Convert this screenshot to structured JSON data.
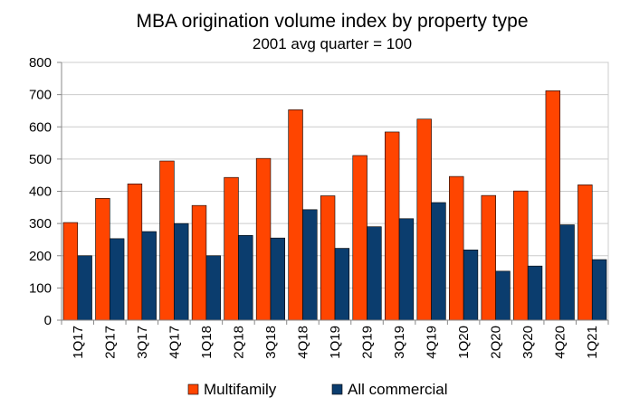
{
  "chart_data": {
    "type": "bar",
    "title": "MBA origination volume index by property type",
    "subtitle": "2001 avg quarter = 100",
    "xlabel": "",
    "ylabel": "",
    "ylim": [
      0,
      800
    ],
    "yticks": [
      0,
      100,
      200,
      300,
      400,
      500,
      600,
      700,
      800
    ],
    "grid": true,
    "legend_position": "bottom",
    "categories": [
      "1Q17",
      "2Q17",
      "3Q17",
      "4Q17",
      "1Q18",
      "2Q18",
      "3Q18",
      "4Q18",
      "1Q19",
      "2Q19",
      "3Q19",
      "4Q19",
      "1Q20",
      "2Q20",
      "3Q20",
      "4Q20",
      "1Q21"
    ],
    "series": [
      {
        "name": "Multifamily",
        "color": "#FF4500",
        "values": [
          303,
          378,
          423,
          494,
          356,
          443,
          502,
          653,
          386,
          511,
          584,
          624,
          446,
          387,
          401,
          712,
          420
        ]
      },
      {
        "name": "All commercial",
        "color": "#0B3D6E",
        "values": [
          200,
          253,
          275,
          300,
          200,
          263,
          255,
          343,
          223,
          290,
          315,
          365,
          218,
          152,
          168,
          296,
          188
        ]
      }
    ]
  }
}
